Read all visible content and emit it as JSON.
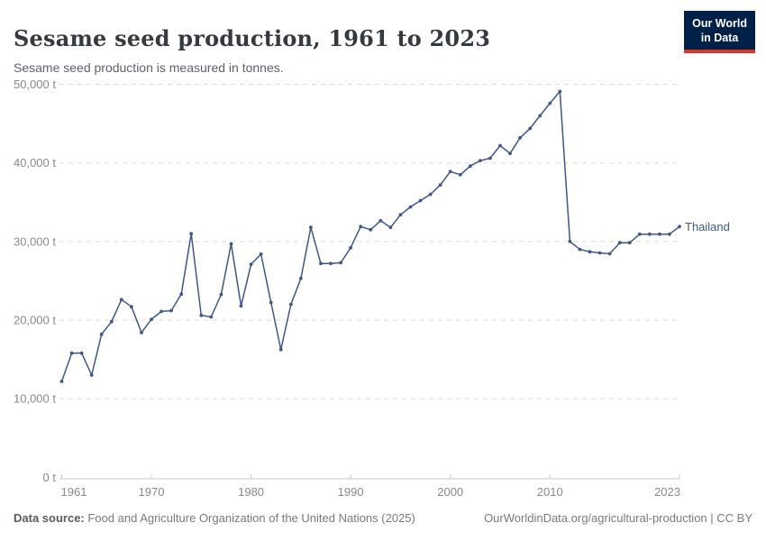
{
  "header": {
    "title": "Sesame seed production, 1961 to 2023",
    "subtitle": "Sesame seed production is measured in tonnes.",
    "logo": {
      "line1": "Our World",
      "line2": "in Data"
    }
  },
  "footer": {
    "source_label": "Data source:",
    "source_text": " Food and Agriculture Organization of the United Nations (2025)",
    "attribution": "OurWorldinData.org/agricultural-production | CC BY"
  },
  "colors": {
    "series_line": "#3d5889",
    "logo_background": "#002147",
    "logo_underline": "#dc352b",
    "gridline": "#dadada",
    "axis_line": "#c8c8c8",
    "tick_label": "#8a8a8a"
  },
  "chart_data": {
    "type": "line",
    "title": "Sesame seed production, 1961 to 2023",
    "subtitle": "Sesame seed production is measured in tonnes.",
    "xlabel": "",
    "ylabel": "",
    "unit": "t",
    "xlim": [
      1961,
      2023
    ],
    "ylim": [
      0,
      50000
    ],
    "grid": true,
    "legend_position": "end-of-line",
    "x": [
      1961,
      1962,
      1963,
      1964,
      1965,
      1966,
      1967,
      1968,
      1969,
      1970,
      1971,
      1972,
      1973,
      1974,
      1975,
      1976,
      1977,
      1978,
      1979,
      1980,
      1981,
      1982,
      1983,
      1984,
      1985,
      1986,
      1987,
      1988,
      1989,
      1990,
      1991,
      1992,
      1993,
      1994,
      1995,
      1996,
      1997,
      1998,
      1999,
      2000,
      2001,
      2002,
      2003,
      2004,
      2005,
      2006,
      2007,
      2008,
      2009,
      2010,
      2011,
      2012,
      2013,
      2014,
      2015,
      2016,
      2017,
      2018,
      2019,
      2020,
      2021,
      2022,
      2023
    ],
    "series": [
      {
        "name": "Thailand",
        "color": "#3d5889",
        "values": [
          12200,
          15800,
          15800,
          13000,
          18200,
          19800,
          22600,
          21700,
          18400,
          20100,
          21100,
          21200,
          23300,
          31000,
          20600,
          20400,
          23250,
          29700,
          21800,
          27100,
          28400,
          22250,
          16250,
          22000,
          25300,
          31800,
          27200,
          27200,
          27300,
          29200,
          31900,
          31500,
          32650,
          31800,
          33400,
          34400,
          35200,
          36000,
          37200,
          38900,
          38500,
          39600,
          40300,
          40600,
          42200,
          41200,
          43200,
          44400,
          46000,
          47600,
          49100,
          30000,
          29000,
          28700,
          28550,
          28450,
          29850,
          29850,
          30930,
          30930,
          30930,
          30930,
          31900
        ]
      }
    ],
    "x_ticks": [
      {
        "value": 1961,
        "label": "1961"
      },
      {
        "value": 1970,
        "label": "1970"
      },
      {
        "value": 1980,
        "label": "1980"
      },
      {
        "value": 1990,
        "label": "1990"
      },
      {
        "value": 2000,
        "label": "2000"
      },
      {
        "value": 2010,
        "label": "2010"
      },
      {
        "value": 2023,
        "label": "2023"
      }
    ],
    "y_ticks": [
      {
        "value": 0,
        "label": "0 t"
      },
      {
        "value": 10000,
        "label": "10,000 t"
      },
      {
        "value": 20000,
        "label": "20,000 t"
      },
      {
        "value": 30000,
        "label": "30,000 t"
      },
      {
        "value": 40000,
        "label": "40,000 t"
      },
      {
        "value": 50000,
        "label": "50,000 t"
      }
    ]
  }
}
